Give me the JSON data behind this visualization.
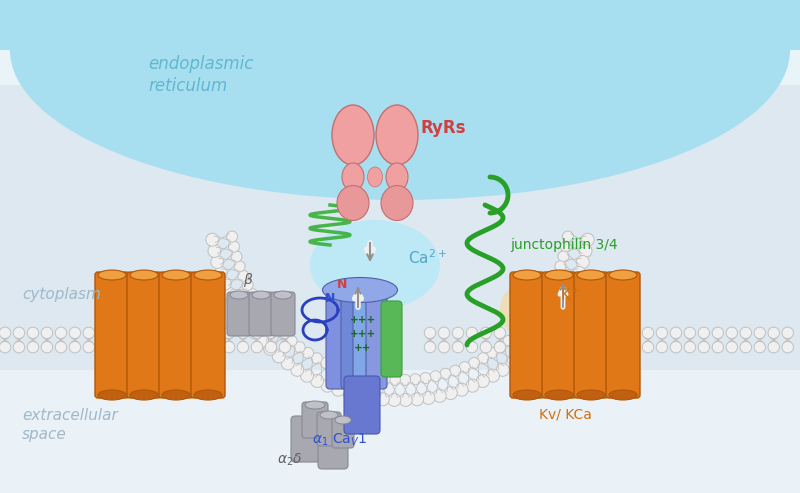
{
  "bg_color": "#e8f4f8",
  "er_color": "#a8dff0",
  "cyto_color": "#dde8f0",
  "extra_color": "#e8f0f5",
  "mem_bead_face": "#ffffff",
  "mem_bead_edge": "#c0c0c0",
  "er_text": "endoplasmic\nreticulum",
  "er_text_color": "#60b8d0",
  "cyto_text": "cytoplasm",
  "cyto_text_color": "#a0b8c8",
  "extra_text": "extracellular\nspace",
  "extra_text_color": "#a0b8c8",
  "ryrs_text": "RyRs",
  "ryrs_text_color": "#d04040",
  "ryr_fill": "#f0a0a0",
  "ryr_edge": "#c07070",
  "junc_text": "junctophilin 3/4",
  "junc_color": "#28a028",
  "ca2_text_color": "#50a8c8",
  "kplus_text_color": "#d07010",
  "alpha1_text_color": "#3050d0",
  "alpha2d_text_color": "#606060",
  "kv_text_color": "#d07010",
  "beta_text_color": "#606060",
  "orange_fill": "#e07818",
  "orange_edge": "#b05808",
  "blue_fill": "#6878d0",
  "blue_edge": "#4858b0",
  "green_seg_fill": "#58b858",
  "green_seg_edge": "#38a038",
  "gray_fill": "#a8a8b0",
  "gray_edge": "#888898",
  "plus_color": "#206820",
  "n_red": "#d04040",
  "n_blue": "#3050d0",
  "arrow_white": "#f0f0f0",
  "arrow_gray": "#909090",
  "ca_glow": "#b0e8f8",
  "k_glow": "#f8d890"
}
